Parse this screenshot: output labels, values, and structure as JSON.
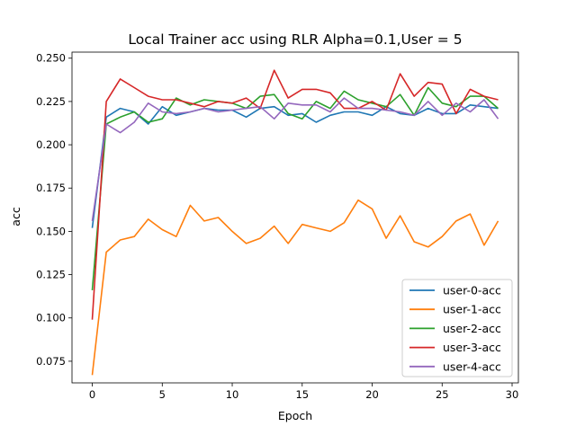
{
  "chart_data": {
    "type": "line",
    "title": "Local Trainer acc using RLR  Alpha=0.1,User = 5",
    "xlabel": "Epoch",
    "ylabel": "acc",
    "xlim": [
      -1.45,
      30.45
    ],
    "ylim": [
      0.0625,
      0.2535
    ],
    "xticks": [
      0,
      5,
      10,
      15,
      20,
      25,
      30
    ],
    "xtick_labels": [
      "0",
      "5",
      "10",
      "15",
      "20",
      "25",
      "30"
    ],
    "yticks": [
      0.075,
      0.1,
      0.125,
      0.15,
      0.175,
      0.2,
      0.225,
      0.25
    ],
    "ytick_labels": [
      "0.075",
      "0.100",
      "0.125",
      "0.150",
      "0.175",
      "0.200",
      "0.225",
      "0.250"
    ],
    "grid": false,
    "legend_position": "lower right",
    "x": [
      0,
      1,
      2,
      3,
      4,
      5,
      6,
      7,
      8,
      9,
      10,
      11,
      12,
      13,
      14,
      15,
      16,
      17,
      18,
      19,
      20,
      21,
      22,
      23,
      24,
      25,
      26,
      27,
      28,
      29
    ],
    "series": [
      {
        "name": "user-0-acc",
        "color": "#1f77b4",
        "values": [
          0.152,
          0.216,
          0.221,
          0.219,
          0.212,
          0.222,
          0.217,
          0.219,
          0.221,
          0.22,
          0.22,
          0.216,
          0.221,
          0.222,
          0.217,
          0.218,
          0.213,
          0.217,
          0.219,
          0.219,
          0.217,
          0.222,
          0.218,
          0.217,
          0.221,
          0.218,
          0.218,
          0.223,
          0.222,
          0.221
        ]
      },
      {
        "name": "user-1-acc",
        "color": "#ff7f0e",
        "values": [
          0.067,
          0.138,
          0.145,
          0.147,
          0.157,
          0.151,
          0.147,
          0.165,
          0.156,
          0.158,
          0.15,
          0.143,
          0.146,
          0.153,
          0.143,
          0.154,
          0.152,
          0.15,
          0.155,
          0.168,
          0.163,
          0.146,
          0.159,
          0.144,
          0.141,
          0.147,
          0.156,
          0.16,
          0.142,
          0.156
        ]
      },
      {
        "name": "user-2-acc",
        "color": "#2ca02c",
        "values": [
          0.116,
          0.212,
          0.216,
          0.219,
          0.213,
          0.215,
          0.227,
          0.223,
          0.226,
          0.225,
          0.224,
          0.221,
          0.228,
          0.229,
          0.218,
          0.215,
          0.225,
          0.221,
          0.231,
          0.226,
          0.224,
          0.222,
          0.229,
          0.217,
          0.233,
          0.224,
          0.222,
          0.228,
          0.228,
          0.221
        ]
      },
      {
        "name": "user-3-acc",
        "color": "#d62728",
        "values": [
          0.099,
          0.225,
          0.238,
          0.233,
          0.228,
          0.226,
          0.226,
          0.224,
          0.222,
          0.225,
          0.224,
          0.227,
          0.221,
          0.243,
          0.227,
          0.232,
          0.232,
          0.23,
          0.221,
          0.221,
          0.225,
          0.22,
          0.241,
          0.228,
          0.236,
          0.235,
          0.218,
          0.232,
          0.228,
          0.226
        ]
      },
      {
        "name": "user-4-acc",
        "color": "#9467bd",
        "values": [
          0.156,
          0.212,
          0.207,
          0.213,
          0.224,
          0.219,
          0.218,
          0.219,
          0.221,
          0.219,
          0.22,
          0.221,
          0.222,
          0.215,
          0.224,
          0.223,
          0.223,
          0.219,
          0.227,
          0.221,
          0.221,
          0.22,
          0.219,
          0.217,
          0.225,
          0.217,
          0.224,
          0.219,
          0.226,
          0.215
        ]
      }
    ]
  }
}
